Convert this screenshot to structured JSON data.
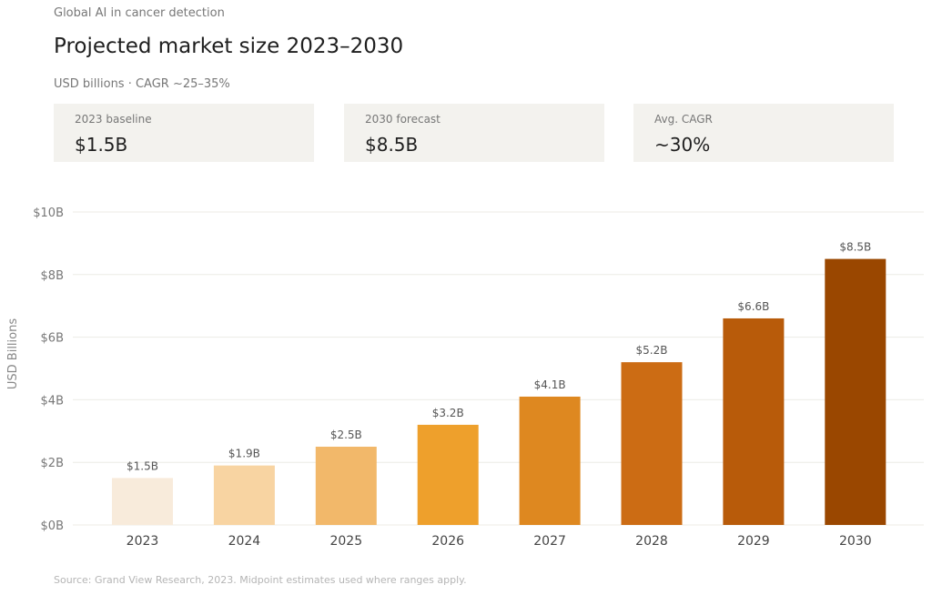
{
  "header": {
    "eyebrow": "Global AI in cancer detection",
    "title": "Projected market size 2023–2030",
    "subtitle": "USD billions · CAGR ~25–35%"
  },
  "cards": [
    {
      "label": "2023 baseline",
      "value": "$1.5B"
    },
    {
      "label": "2030 forecast",
      "value": "$8.5B"
    },
    {
      "label": "Avg. CAGR",
      "value": "~30%"
    }
  ],
  "footer": "Source: Grand View Research, 2023. Midpoint estimates used where ranges apply.",
  "chart_data": {
    "type": "bar",
    "title": "Projected market size 2023–2030",
    "xlabel": "",
    "ylabel": "USD Billions",
    "categories": [
      "2023",
      "2024",
      "2025",
      "2026",
      "2027",
      "2028",
      "2029",
      "2030"
    ],
    "values": [
      1.5,
      1.9,
      2.5,
      3.2,
      4.1,
      5.2,
      6.6,
      8.5
    ],
    "data_labels": [
      "$1.5B",
      "$1.9B",
      "$2.5B",
      "$3.2B",
      "$4.1B",
      "$5.2B",
      "$6.6B",
      "$8.5B"
    ],
    "colors": [
      "#f8ebdb",
      "#f8d4a2",
      "#f2b86a",
      "#eea02c",
      "#de8820",
      "#cc6c14",
      "#b85b0a",
      "#9a4700"
    ],
    "ylim": [
      0,
      10
    ],
    "yticks": [
      0,
      2,
      4,
      6,
      8,
      10
    ],
    "ytick_labels": [
      "$0B",
      "$2B",
      "$4B",
      "$6B",
      "$8B",
      "$10B"
    ],
    "grid": true,
    "legend": "none"
  }
}
